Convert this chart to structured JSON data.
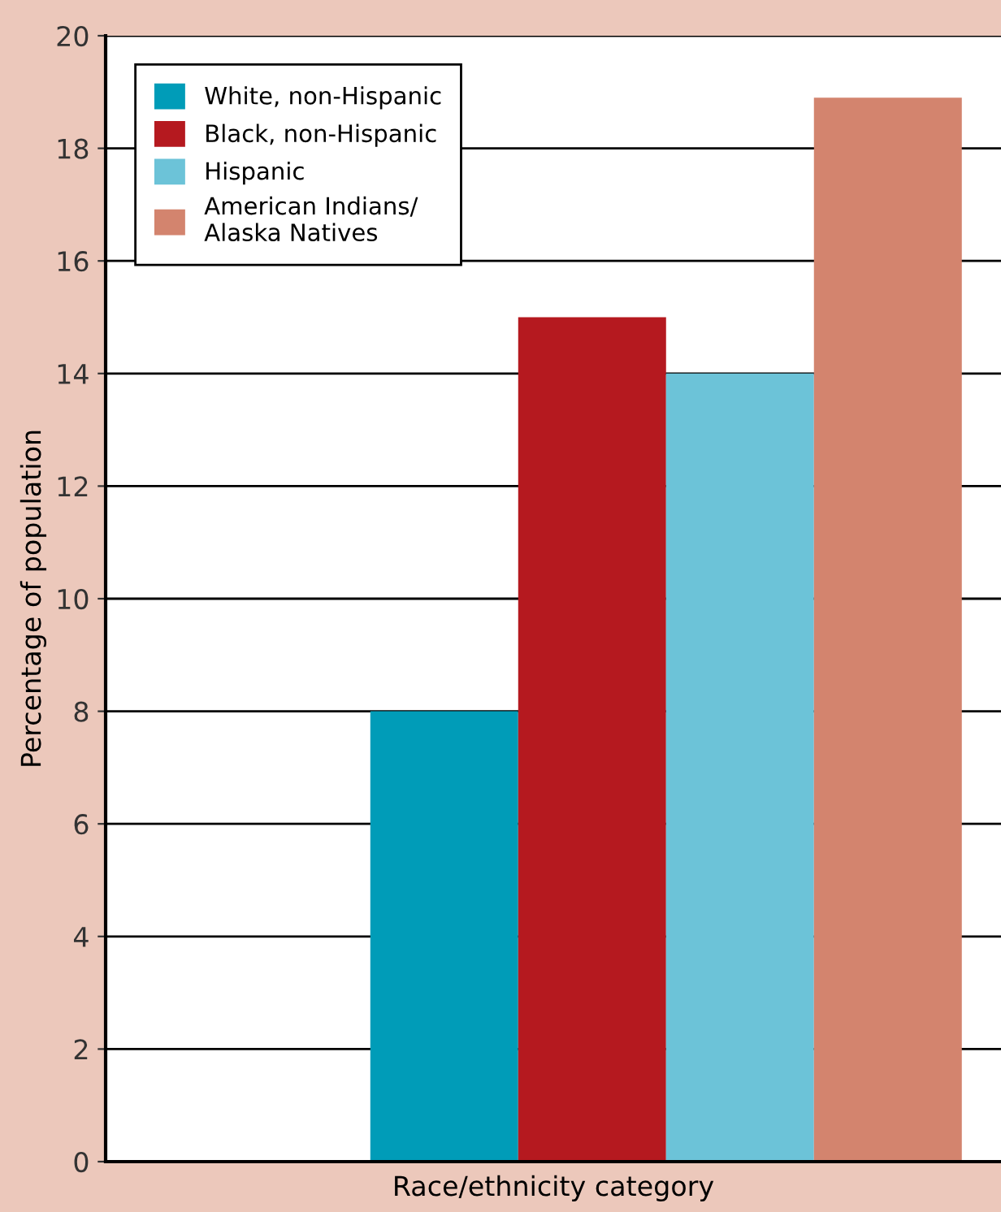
{
  "chart_data": {
    "type": "bar",
    "xlabel": "Race/ethnicity category",
    "ylabel": "Percentage of population",
    "categories": [
      null
    ],
    "series": [
      {
        "name": "White, non-Hispanic",
        "color": "#009cb8",
        "values": [
          8
        ]
      },
      {
        "name": "Black, non-Hispanic",
        "color": "#b5191f",
        "values": [
          15
        ]
      },
      {
        "name": "Hispanic",
        "color": "#6cc3d8",
        "values": [
          14
        ]
      },
      {
        "name": "American Indians/\nAlaska Natives",
        "color": "#d3846e",
        "values": [
          18.9
        ]
      }
    ],
    "ylim": [
      0,
      20
    ],
    "yticks": [
      0,
      2,
      4,
      6,
      8,
      10,
      12,
      14,
      16,
      18,
      20
    ],
    "grid": "y",
    "legend": "top left",
    "tick_labels": "y"
  }
}
